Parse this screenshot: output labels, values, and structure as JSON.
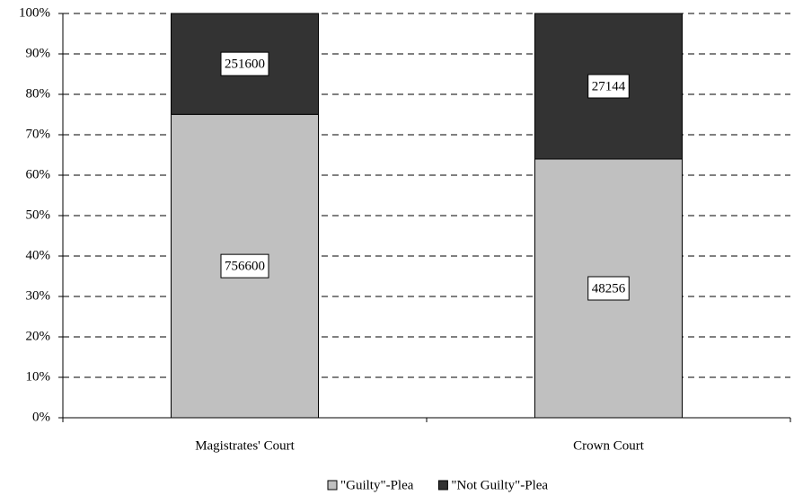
{
  "chart_data": {
    "type": "bar",
    "stacking": "percent",
    "categories": [
      "Magistrates' Court",
      "Crown Court"
    ],
    "series": [
      {
        "name": "\"Guilty\"-Plea",
        "color": "#c0c0c0",
        "values": [
          756600,
          48256
        ]
      },
      {
        "name": "\"Not Guilty\"-Plea",
        "color": "#333333",
        "values": [
          251600,
          27144
        ]
      }
    ],
    "ylim": [
      0,
      100
    ],
    "yticks": [
      {
        "value": 0,
        "label": "0%"
      },
      {
        "value": 10,
        "label": "10%"
      },
      {
        "value": 20,
        "label": "20%"
      },
      {
        "value": 30,
        "label": "30%"
      },
      {
        "value": 40,
        "label": "40%"
      },
      {
        "value": 50,
        "label": "50%"
      },
      {
        "value": 60,
        "label": "60%"
      },
      {
        "value": 70,
        "label": "70%"
      },
      {
        "value": 80,
        "label": "80%"
      },
      {
        "value": 90,
        "label": "90%"
      },
      {
        "value": 100,
        "label": "100%"
      }
    ],
    "grid": true,
    "legend": "bottom"
  }
}
